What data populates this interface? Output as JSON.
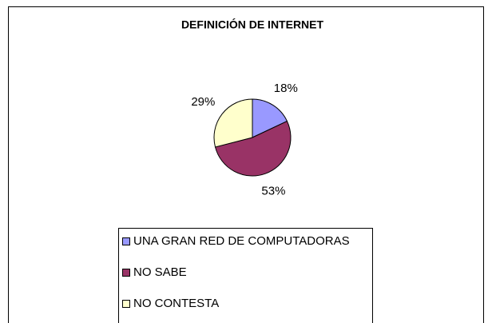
{
  "chart_data": {
    "type": "pie",
    "title": "DEFINICIÓN DE INTERNET",
    "categories": [
      "UNA GRAN RED DE COMPUTADORAS",
      "NO SABE",
      "NO CONTESTA"
    ],
    "values": [
      18,
      53,
      29
    ],
    "value_labels": [
      "18%",
      "53%",
      "29%"
    ],
    "colors": [
      "#9999ff",
      "#993366",
      "#ffffcc"
    ]
  }
}
